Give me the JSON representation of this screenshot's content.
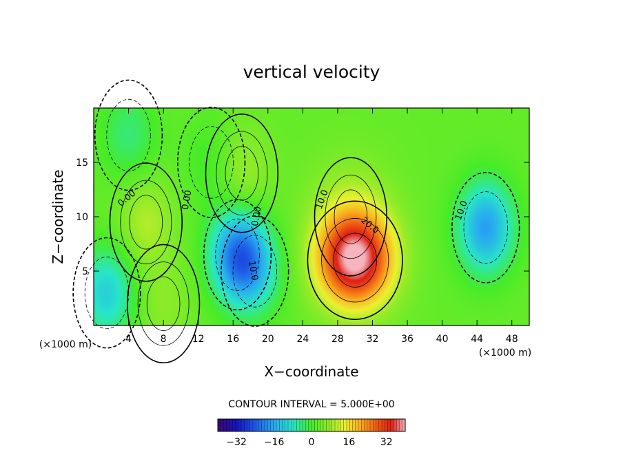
{
  "chart_data": {
    "type": "heatmap",
    "title": "vertical velocity",
    "xlabel": "X−coordinate",
    "ylabel": "Z−coordinate",
    "x_unit": "(×1000 m)",
    "z_unit": "(×1000 m)",
    "xlim": [
      0,
      50
    ],
    "ylim": [
      0,
      20
    ],
    "x_ticks": [
      4,
      8,
      12,
      16,
      20,
      24,
      28,
      32,
      36,
      40,
      44,
      48
    ],
    "y_ticks": [
      5,
      10,
      15
    ],
    "contour_interval_text": "CONTOUR INTERVAL =  5.000E+00",
    "contour_labels": [
      "0.00",
      "0.00",
      "0.00",
      "10.0",
      "20.0",
      "10.0",
      "10.0"
    ],
    "colorbar": {
      "range": [
        -40,
        40
      ],
      "ticks": [
        -32,
        -16,
        0,
        16,
        32
      ],
      "tick_labels": [
        "−32",
        "−16",
        "0",
        "16",
        "32"
      ]
    },
    "features": [
      {
        "x": 30.0,
        "z": 6.0,
        "peak": 36
      },
      {
        "x": 29.5,
        "z": 10.0,
        "peak": 6
      },
      {
        "x": 6.0,
        "z": 9.5,
        "peak": 7
      },
      {
        "x": 16.5,
        "z": 6.5,
        "peak": -22
      },
      {
        "x": 18.5,
        "z": 5.0,
        "peak": -10
      },
      {
        "x": 45.0,
        "z": 9.0,
        "peak": -20
      },
      {
        "x": 1.5,
        "z": 3.0,
        "peak": -14
      },
      {
        "x": 4.0,
        "z": 17.5,
        "peak": -7
      },
      {
        "x": 13.5,
        "z": 15.0,
        "peak": -4
      },
      {
        "x": 17.0,
        "z": 14.0,
        "peak": 6
      },
      {
        "x": 8.0,
        "z": 2.0,
        "peak": 4
      }
    ]
  }
}
